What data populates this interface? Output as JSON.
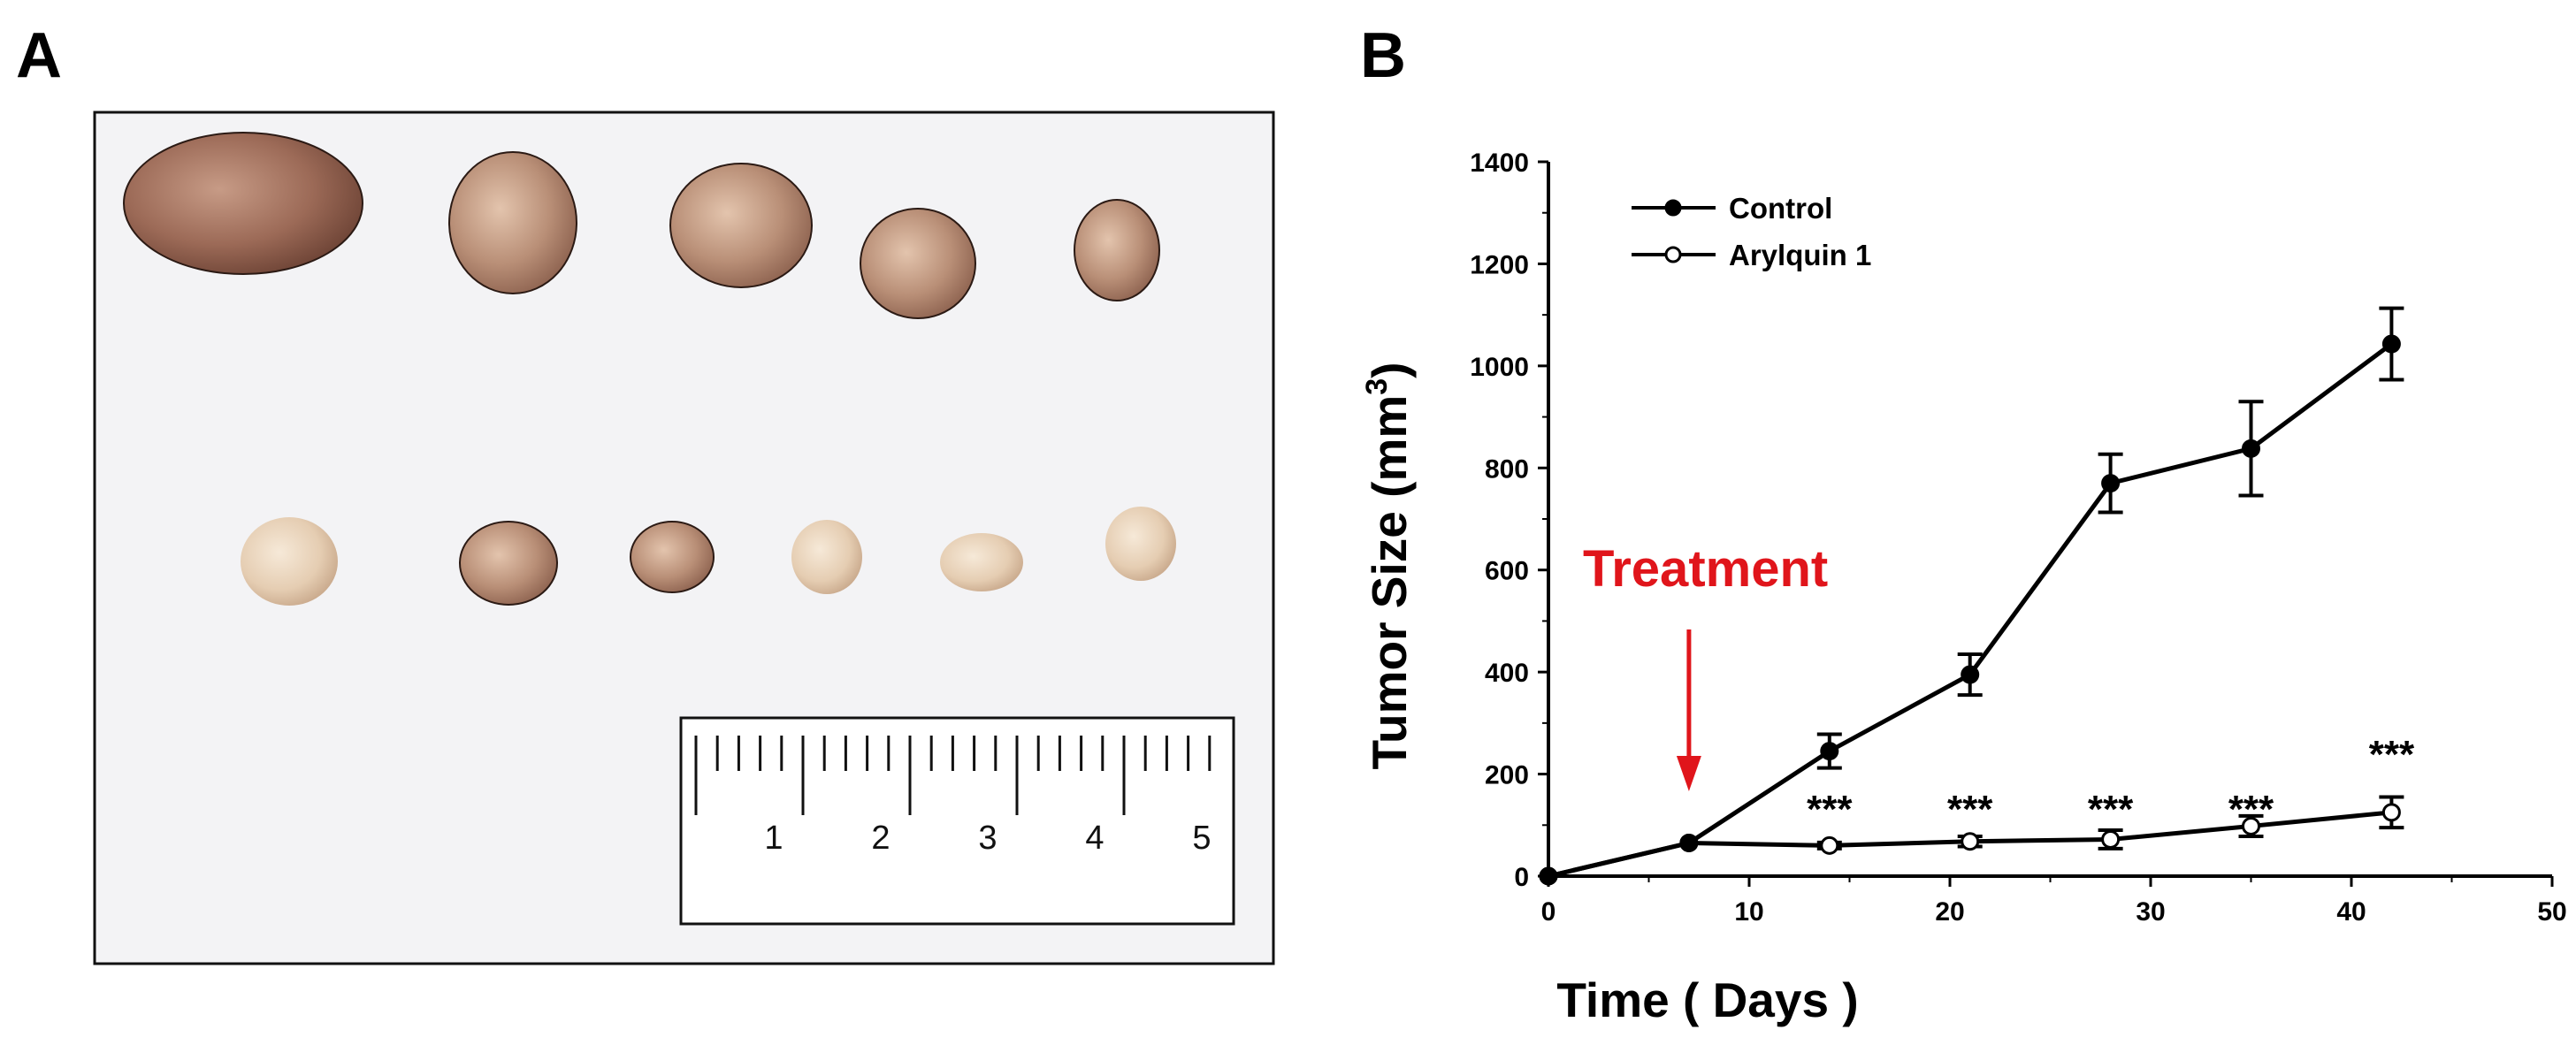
{
  "panels": {
    "a_label": "A",
    "b_label": "B"
  },
  "photo": {
    "description_icon": "tumor-photo",
    "ruler_numbers": [
      "1",
      "2",
      "3",
      "4",
      "5"
    ],
    "colors": {
      "background": "#f3f3f5",
      "control_tumor": "#a77563",
      "treated_tumor": "#e4cbb2"
    }
  },
  "chart_data": {
    "type": "line",
    "title": "",
    "xlabel": "Time ( Days )",
    "ylabel_main": "Tumor Size (mm",
    "ylabel_sup": "3",
    "ylabel_end": ")",
    "xlim": [
      0,
      50
    ],
    "ylim": [
      0,
      1400
    ],
    "xticks": [
      0,
      10,
      20,
      30,
      40,
      50
    ],
    "yticks": [
      0,
      200,
      400,
      600,
      800,
      1000,
      1200,
      1400
    ],
    "legend_position": "top-left",
    "series": [
      {
        "name": "Control",
        "marker": "filled-circle",
        "color": "#000000",
        "x": [
          0,
          7,
          14,
          21,
          28,
          35,
          42
        ],
        "values": [
          0,
          65,
          245,
          395,
          770,
          838,
          1043
        ],
        "errors": [
          0,
          0,
          33,
          40,
          57,
          92,
          70
        ]
      },
      {
        "name": "Arylquin 1",
        "marker": "open-circle",
        "color": "#000000",
        "x": [
          0,
          7,
          14,
          21,
          28,
          35,
          42
        ],
        "values": [
          0,
          65,
          60,
          68,
          72,
          98,
          125
        ],
        "errors": [
          0,
          0,
          6,
          10,
          18,
          20,
          30
        ]
      }
    ],
    "annotations": {
      "treatment_label": "Treatment",
      "treatment_day": 7,
      "treatment_color": "#e0151b",
      "significance_label": "***",
      "significance_days": [
        14,
        21,
        28,
        35,
        42
      ]
    }
  }
}
